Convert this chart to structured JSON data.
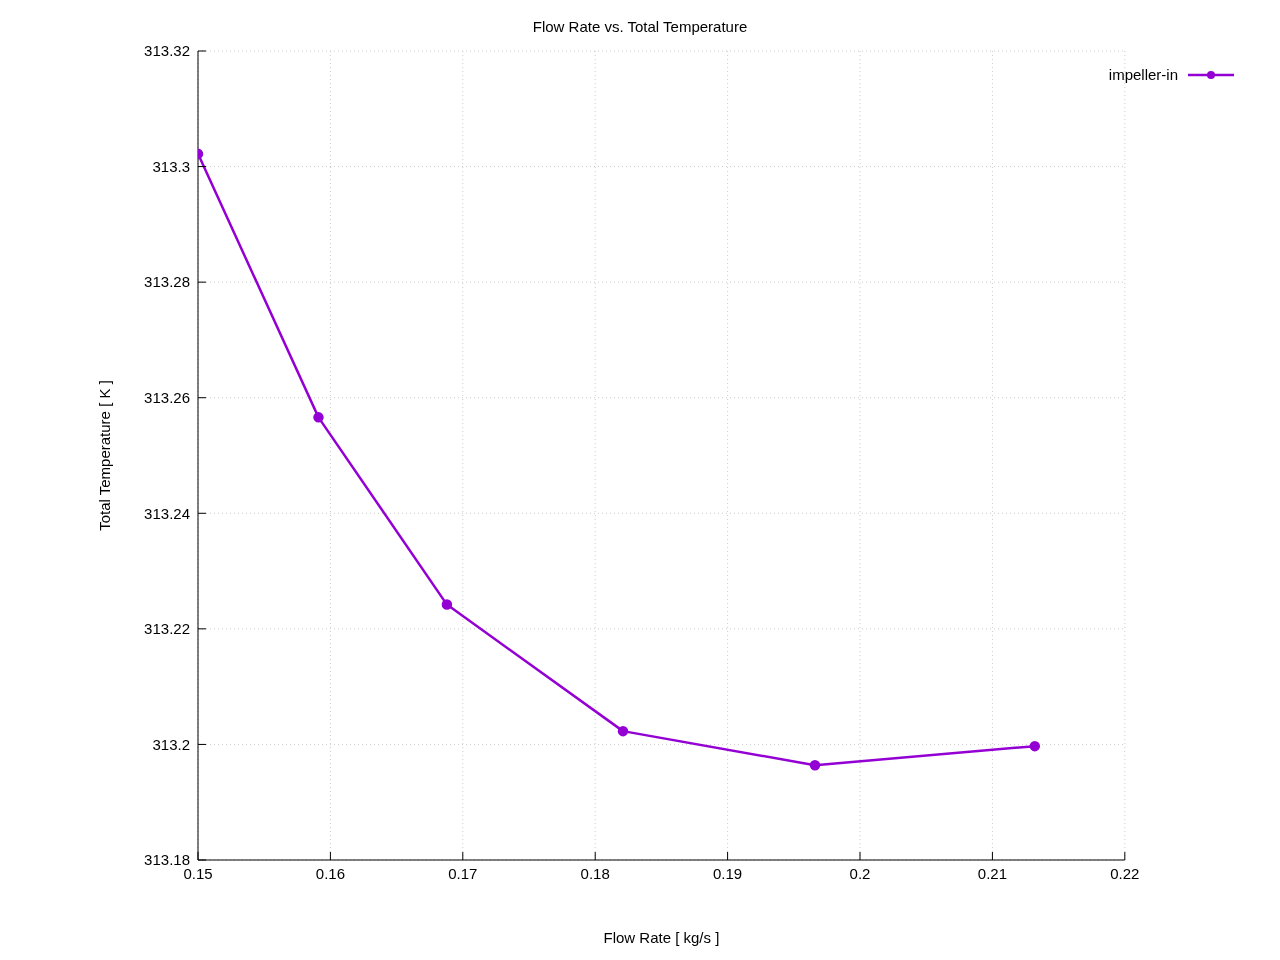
{
  "chart_data": {
    "type": "line",
    "title": "Flow Rate vs. Total Temperature",
    "xlabel": "Flow Rate [ kg/s ]",
    "ylabel": "Total Temperature [ K ]",
    "x": [
      0.15,
      0.1591,
      0.1688,
      0.1821,
      0.1966,
      0.2132
    ],
    "series": [
      {
        "name": "impeller-in",
        "color": "#9400d3",
        "values": [
          313.3022,
          313.2566,
          313.2242,
          313.2023,
          313.1964,
          313.1997
        ]
      }
    ],
    "xlim": [
      0.15,
      0.22
    ],
    "xticks": [
      0.15,
      0.16,
      0.17,
      0.18,
      0.19,
      0.2,
      0.21,
      0.22
    ],
    "ylim": [
      313.18,
      313.32
    ],
    "yticks": [
      313.18,
      313.2,
      313.22,
      313.24,
      313.26,
      313.28,
      313.3,
      313.32
    ],
    "grid": true,
    "legend": "top right",
    "marker": "circle",
    "line_style": "solid"
  }
}
